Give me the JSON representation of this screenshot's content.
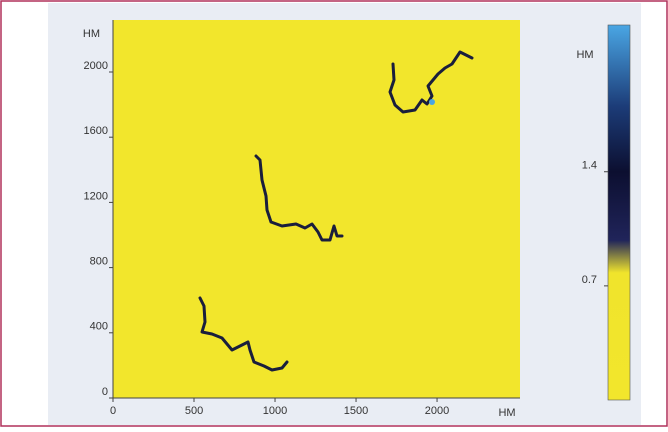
{
  "chart_data": {
    "type": "image",
    "x_label": "HM",
    "y_label": "HM",
    "xlim": [
      0,
      2512
    ],
    "xticks": [
      0,
      500,
      1000,
      1500,
      2000
    ],
    "ylim": [
      0,
      2319
    ],
    "yticks": [
      0,
      400,
      800,
      1200,
      1600,
      2000
    ],
    "image_color": "#f2e62c",
    "colorbar": {
      "label": "HM",
      "clim": [
        0,
        2.3
      ],
      "ticks": [
        0.7,
        1.4
      ],
      "stops": [
        {
          "value": 0,
          "color": "#f2e62c"
        },
        {
          "value": 0.78,
          "color": "#f0e42c"
        },
        {
          "value": 0.98,
          "color": "#20245a"
        },
        {
          "value": 1.4,
          "color": "#0c0f30"
        },
        {
          "value": 1.8,
          "color": "#1c3c78"
        },
        {
          "value": 2.3,
          "color": "#4aa6e4"
        }
      ]
    }
  }
}
